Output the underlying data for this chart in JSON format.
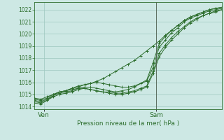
{
  "xlabel": "Pression niveau de la mer( hPa )",
  "bg_color": "#cde8e4",
  "grid_color": "#9ec8c0",
  "line_color": "#2d6e2d",
  "axis_color": "#2d6e2d",
  "ylim": [
    1013.8,
    1022.6
  ],
  "xlim": [
    0,
    40
  ],
  "yticks": [
    1014,
    1015,
    1016,
    1017,
    1018,
    1019,
    1020,
    1021,
    1022
  ],
  "ven_x": 2,
  "sam_x": 26,
  "vline_x": 26,
  "series": [
    [
      1014.3,
      1014.2,
      1014.5,
      1014.9,
      1015.2,
      1015.3,
      1015.5,
      1015.6,
      1015.8,
      1015.9,
      1016.1,
      1016.3,
      1016.6,
      1016.9,
      1017.2,
      1017.5,
      1017.8,
      1018.2,
      1018.6,
      1019.0,
      1019.4,
      1019.9,
      1020.3,
      1020.7,
      1021.1,
      1021.4,
      1021.6,
      1021.8,
      1022.0,
      1022.1,
      1022.2
    ],
    [
      1014.5,
      1014.4,
      1014.6,
      1014.9,
      1015.1,
      1015.2,
      1015.3,
      1015.5,
      1015.5,
      1015.4,
      1015.3,
      1015.2,
      1015.2,
      1015.1,
      1015.1,
      1015.2,
      1015.3,
      1015.5,
      1015.7,
      1016.9,
      1018.4,
      1019.1,
      1019.7,
      1020.2,
      1020.6,
      1021.0,
      1021.3,
      1021.5,
      1021.7,
      1021.9,
      1022.0
    ],
    [
      1014.4,
      1014.3,
      1014.5,
      1014.8,
      1015.0,
      1015.1,
      1015.2,
      1015.4,
      1015.5,
      1015.4,
      1015.3,
      1015.2,
      1015.1,
      1015.0,
      1015.0,
      1015.1,
      1015.2,
      1015.4,
      1015.6,
      1016.7,
      1018.1,
      1018.9,
      1019.5,
      1020.0,
      1020.5,
      1020.9,
      1021.2,
      1021.5,
      1021.7,
      1021.8,
      1022.0
    ],
    [
      1014.6,
      1014.5,
      1014.7,
      1015.0,
      1015.2,
      1015.3,
      1015.4,
      1015.5,
      1015.6,
      1015.6,
      1015.5,
      1015.4,
      1015.3,
      1015.2,
      1015.3,
      1015.4,
      1015.6,
      1015.9,
      1016.2,
      1017.6,
      1019.2,
      1019.8,
      1020.3,
      1020.7,
      1021.1,
      1021.4,
      1021.6,
      1021.8,
      1022.0,
      1022.1,
      1022.2
    ],
    [
      1014.7,
      1014.6,
      1014.8,
      1015.0,
      1015.2,
      1015.3,
      1015.5,
      1015.7,
      1015.8,
      1015.9,
      1016.0,
      1015.9,
      1015.8,
      1015.7,
      1015.6,
      1015.6,
      1015.7,
      1015.9,
      1016.1,
      1017.2,
      1018.9,
      1019.5,
      1020.1,
      1020.5,
      1021.0,
      1021.3,
      1021.5,
      1021.7,
      1021.9,
      1022.0,
      1022.1
    ]
  ]
}
